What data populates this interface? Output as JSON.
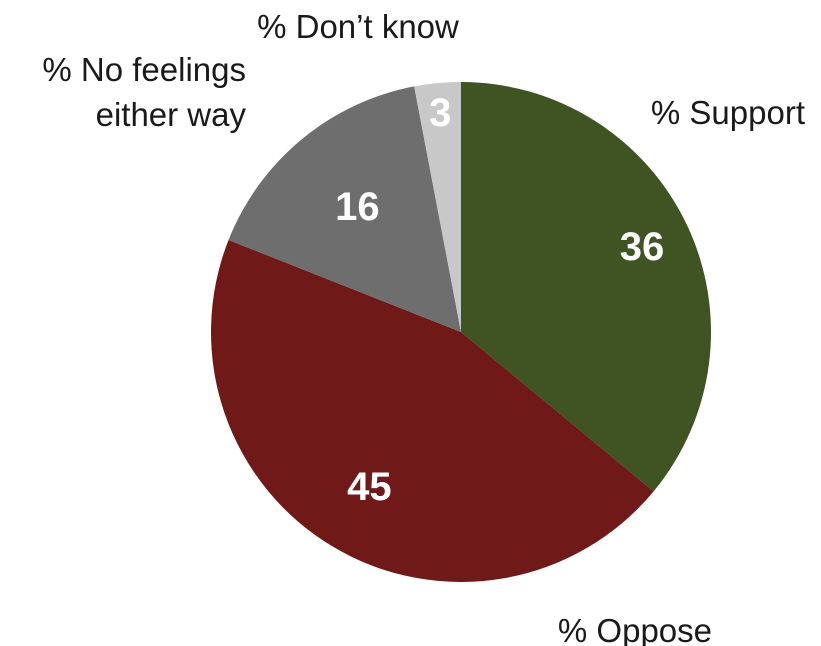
{
  "chart_data": {
    "type": "pie",
    "title": "",
    "start": "top",
    "direction": "clockwise",
    "slices": [
      {
        "label": "% Support",
        "label_lines": [
          "% Support"
        ],
        "value": 36,
        "display": "36",
        "color": "#3f5323"
      },
      {
        "label": "% Oppose",
        "label_lines": [
          "% Oppose"
        ],
        "value": 45,
        "display": "45",
        "color": "#701919"
      },
      {
        "label": "% No feelings either way",
        "label_lines": [
          "% No feelings",
          "either way"
        ],
        "value": 16,
        "display": "16",
        "color": "#6e6e6e"
      },
      {
        "label": "% Don’t know",
        "label_lines": [
          "% Don’t know"
        ],
        "value": 3,
        "display": "3",
        "color": "#c8c8c8"
      }
    ]
  }
}
